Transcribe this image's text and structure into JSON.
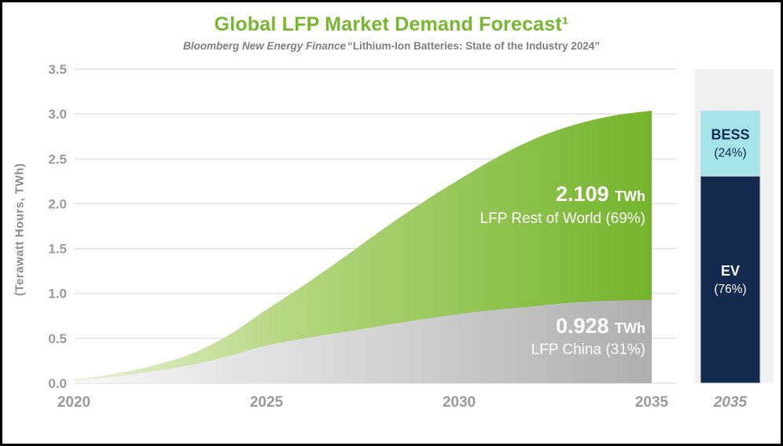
{
  "header": {
    "title": "Global LFP Market Demand Forecast¹",
    "subtitle_source": "Bloomberg New Energy Finance",
    "subtitle_quote": "“Lithium-Ion Batteries: State of the Industry 2024”"
  },
  "theme": {
    "title_color": "#76b72d",
    "axis_text_color": "#9a9a9a",
    "ylabel_color": "#8c8c8c",
    "grid_color": "#dcdcdc",
    "annotation_text_color": "#ffffff",
    "band_color": "#f0f0f0"
  },
  "chart_data": {
    "type": "area",
    "stacked": true,
    "title": "Global LFP Market Demand Forecast",
    "ylabel": "(Terawatt Hours, TWh)",
    "ylim": [
      0,
      3.5
    ],
    "ytick_step": 0.5,
    "x": [
      2020,
      2021,
      2022,
      2023,
      2024,
      2025,
      2026,
      2027,
      2028,
      2029,
      2030,
      2031,
      2032,
      2033,
      2034,
      2035
    ],
    "xticks": [
      2020,
      2025,
      2030,
      2035
    ],
    "series": [
      {
        "name": "LFP China",
        "share_label": "LFP China (31%)",
        "final_value_twh": 0.928,
        "values": [
          0.03,
          0.07,
          0.13,
          0.2,
          0.3,
          0.42,
          0.5,
          0.57,
          0.64,
          0.71,
          0.77,
          0.82,
          0.86,
          0.9,
          0.92,
          0.928
        ],
        "gradient": [
          "#f7f7f7",
          "#d9d9d9",
          "#aeaeae"
        ]
      },
      {
        "name": "LFP Rest of World",
        "share_label": "LFP Rest of World (69%)",
        "final_value_twh": 2.109,
        "values": [
          0.01,
          0.03,
          0.06,
          0.12,
          0.23,
          0.4,
          0.6,
          0.83,
          1.07,
          1.29,
          1.5,
          1.7,
          1.87,
          1.98,
          2.06,
          2.109
        ],
        "gradient": [
          "#eaf2d7",
          "#b5d67f",
          "#74b42c"
        ]
      }
    ],
    "annotations": [
      {
        "value": "2.109",
        "unit": "TWh",
        "label": "LFP Rest of World (69%)"
      },
      {
        "value": "0.928",
        "unit": "TWh",
        "label": "LFP China (31%)"
      }
    ]
  },
  "side_bar": {
    "x_label": "2035",
    "total_twh": 3.037,
    "segments": [
      {
        "label": "BESS",
        "pct": "(24%)",
        "fraction": 0.24,
        "color": "#a5e5ea",
        "text_color": "#13294d"
      },
      {
        "label": "EV",
        "pct": "(76%)",
        "fraction": 0.76,
        "color": "#13294d",
        "text_color": "#ffffff"
      }
    ]
  }
}
